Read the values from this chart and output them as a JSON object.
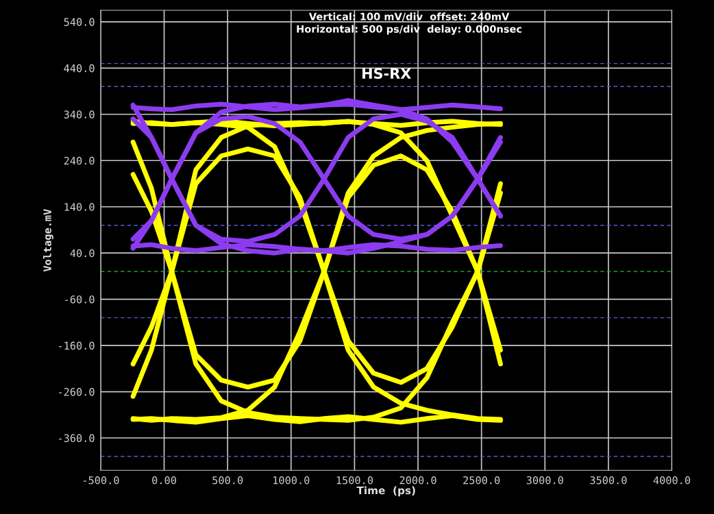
{
  "chart_data": {
    "type": "line",
    "title": "HS-RX",
    "annotations": [
      "Vertical: 100 mV/div  offset: 240mV",
      "Horizontal: 500 ps/div  delay: 0.000nsec"
    ],
    "xlabel": "Time  (ps)",
    "ylabel": "Voltage.mV",
    "x": [
      -245,
      -100,
      60,
      250,
      450,
      660,
      870,
      1070,
      1260,
      1450,
      1650,
      1865,
      2070,
      2270,
      2470,
      2650
    ],
    "xlim": [
      -500,
      4000
    ],
    "xticks": [
      {
        "value": -500,
        "label": "-500.0"
      },
      {
        "value": 0,
        "label": "0.00"
      },
      {
        "value": 500,
        "label": "500.0"
      },
      {
        "value": 1000,
        "label": "1000.0"
      },
      {
        "value": 1500,
        "label": "1500.0"
      },
      {
        "value": 2000,
        "label": "2000.0"
      },
      {
        "value": 2500,
        "label": "2500.0"
      },
      {
        "value": 3000,
        "label": "3000.0"
      },
      {
        "value": 3500,
        "label": "3500.0"
      },
      {
        "value": 4000,
        "label": "4000.0"
      }
    ],
    "ylim": [
      -430,
      565
    ],
    "yticks": [
      {
        "value": 540,
        "label": "540.0"
      },
      {
        "value": 440,
        "label": "440.0"
      },
      {
        "value": 340,
        "label": "340.0"
      },
      {
        "value": 240,
        "label": "240.0"
      },
      {
        "value": 140,
        "label": "140.0"
      },
      {
        "value": 40,
        "label": "40.0"
      },
      {
        "value": -60,
        "label": "-60.0"
      },
      {
        "value": -160,
        "label": "-160.0"
      },
      {
        "value": -260,
        "label": "-260.0"
      },
      {
        "value": -360,
        "label": "-360.0"
      }
    ],
    "grid": true,
    "line_style": "solid",
    "ref_lines": [
      {
        "axis": "y",
        "value": 450,
        "color": "#5a5ad2",
        "line_style": "dashed"
      },
      {
        "axis": "y",
        "value": 400,
        "color": "#5a5ad2",
        "line_style": "dashed"
      },
      {
        "axis": "y",
        "value": 100,
        "color": "#5a5ad2",
        "line_style": "dashed"
      },
      {
        "axis": "y",
        "value": 0,
        "color": "#22c422",
        "line_style": "dashed"
      },
      {
        "axis": "y",
        "value": -100,
        "color": "#5a5ad2",
        "line_style": "dashed"
      },
      {
        "axis": "y",
        "value": -400,
        "color": "#5a5ad2",
        "line_style": "dashed"
      }
    ],
    "series": [
      {
        "color": "#ffff00",
        "values": [
          -200,
          -120,
          0,
          190,
          250,
          265,
          250,
          160,
          0,
          -150,
          -220,
          -240,
          -210,
          -120,
          0,
          170
        ]
      },
      {
        "color": "#ffff00",
        "values": [
          210,
          130,
          0,
          -180,
          -235,
          -250,
          -235,
          -150,
          0,
          160,
          230,
          250,
          220,
          130,
          0,
          -170
        ]
      },
      {
        "color": "#ffff00",
        "values": [
          -270,
          -170,
          0,
          220,
          290,
          315,
          320,
          322,
          320,
          325,
          318,
          300,
          240,
          120,
          0,
          -200
        ]
      },
      {
        "color": "#ffff00",
        "values": [
          280,
          180,
          0,
          -200,
          -280,
          -305,
          -315,
          -318,
          -320,
          -322,
          -315,
          -295,
          -230,
          -110,
          0,
          190
        ]
      },
      {
        "color": "#ffff00",
        "values": [
          325,
          320,
          318,
          322,
          326,
          320,
          315,
          318,
          322,
          324,
          320,
          316,
          322,
          325,
          320,
          318
        ]
      },
      {
        "color": "#ffff00",
        "values": [
          -320,
          -318,
          -322,
          -326,
          -318,
          -312,
          -320,
          -325,
          -318,
          -314,
          -320,
          -326,
          -318,
          -312,
          -320,
          -322
        ]
      },
      {
        "color": "#ffff00",
        "values": [
          320,
          322,
          318,
          322,
          318,
          312,
          270,
          150,
          0,
          -170,
          -250,
          -285,
          -300,
          -310,
          -318,
          -320
        ]
      },
      {
        "color": "#ffff00",
        "values": [
          -318,
          -322,
          -318,
          -320,
          -316,
          -300,
          -250,
          -130,
          0,
          170,
          250,
          290,
          305,
          312,
          318,
          320
        ]
      },
      {
        "color": "#8c3cf0",
        "values": [
          70,
          110,
          200,
          300,
          330,
          335,
          320,
          280,
          200,
          120,
          80,
          70,
          80,
          120,
          200,
          280
        ]
      },
      {
        "color": "#8c3cf0",
        "values": [
          330,
          290,
          200,
          100,
          70,
          65,
          80,
          120,
          200,
          290,
          330,
          340,
          325,
          290,
          200,
          120
        ]
      },
      {
        "color": "#8c3cf0",
        "values": [
          355,
          352,
          350,
          358,
          362,
          356,
          350,
          354,
          360,
          362,
          356,
          350,
          355,
          360,
          356,
          352
        ]
      },
      {
        "color": "#8c3cf0",
        "values": [
          55,
          58,
          50,
          45,
          52,
          58,
          54,
          48,
          45,
          52,
          58,
          55,
          48,
          46,
          52,
          56
        ]
      },
      {
        "color": "#8c3cf0",
        "values": [
          50,
          110,
          200,
          300,
          345,
          358,
          362,
          356,
          360,
          370,
          360,
          350,
          330,
          280,
          200,
          120
        ]
      },
      {
        "color": "#8c3cf0",
        "values": [
          360,
          290,
          200,
          100,
          60,
          45,
          40,
          48,
          45,
          40,
          50,
          65,
          80,
          120,
          200,
          290
        ]
      }
    ]
  }
}
